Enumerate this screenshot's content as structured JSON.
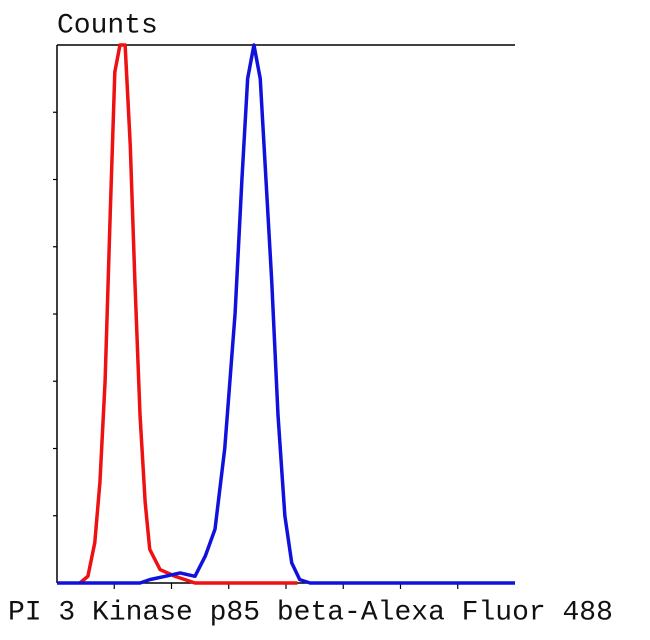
{
  "chart_data": {
    "type": "line",
    "y_label": "Counts",
    "x_label": "PI 3 Kinase p85 beta-Alexa Fluor 488",
    "xlim": [
      0,
      8
    ],
    "xticks": [
      1,
      2,
      3,
      4,
      5,
      6,
      7
    ],
    "ylim": [
      0,
      8
    ],
    "yticks": [
      1,
      2,
      3,
      4,
      5,
      6,
      7
    ],
    "series": [
      {
        "color": "#ee1111",
        "x": [
          0.4,
          0.54,
          0.66,
          0.75,
          0.84,
          0.93,
          1.01,
          1.1,
          1.19,
          1.28,
          1.36,
          1.45,
          1.54,
          1.62,
          1.8,
          2.06,
          2.41,
          4.2
        ],
        "values": [
          0,
          0.1,
          0.6,
          1.5,
          3,
          5.5,
          7.6,
          8,
          8,
          6.5,
          4.5,
          2.5,
          1.2,
          0.5,
          0.2,
          0.1,
          0,
          0
        ]
      },
      {
        "color": "#1111dd",
        "x": [
          0,
          1.45,
          1.62,
          1.89,
          2.15,
          2.41,
          2.59,
          2.76,
          2.93,
          3.11,
          3.23,
          3.33,
          3.44,
          3.55,
          3.65,
          3.75,
          3.86,
          3.98,
          4.1,
          4.24,
          4.42,
          8
        ],
        "values": [
          0,
          0,
          0.05,
          0.1,
          0.15,
          0.1,
          0.4,
          0.8,
          2,
          4,
          6,
          7.5,
          8,
          7.5,
          6,
          4.5,
          2.5,
          1,
          0.3,
          0.05,
          0,
          0
        ]
      }
    ]
  }
}
